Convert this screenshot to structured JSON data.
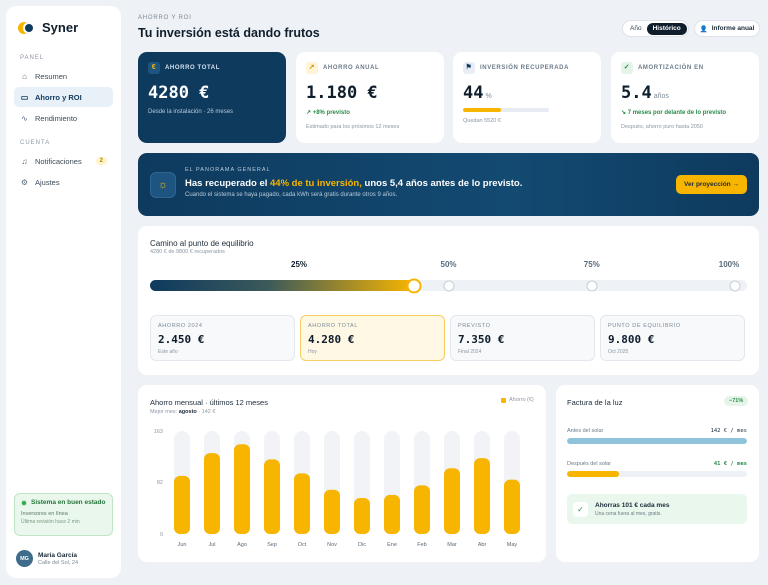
{
  "brand": {
    "name": "Syner"
  },
  "sidebar": {
    "section_panel": "PANEL",
    "section_account": "CUENTA",
    "items": [
      {
        "label": "Resumen",
        "icon": "home-icon",
        "glyph": "⌂"
      },
      {
        "label": "Ahorro y ROI",
        "icon": "savings-icon",
        "glyph": "▭",
        "active": true
      },
      {
        "label": "Rendimiento",
        "icon": "pulse-icon",
        "glyph": "∿"
      }
    ],
    "account_items": [
      {
        "label": "Notificaciones",
        "icon": "bell-icon",
        "glyph": "♫",
        "badge": "2"
      },
      {
        "label": "Ajustes",
        "icon": "gear-icon",
        "glyph": "⚙"
      }
    ],
    "system": {
      "title": "Sistema en buen estado",
      "subtitle": "Inversores en línea",
      "detail": "Última revisión hace 2 min"
    },
    "user": {
      "initials": "MG",
      "name": "María García",
      "address": "Calle del Sol, 24"
    }
  },
  "header": {
    "eyebrow": "AHORRO Y ROI",
    "title": "Tu inversión está dando frutos",
    "seg_year": "Año",
    "seg_history": "Histórico",
    "report_button": "Informe anual"
  },
  "kpis": {
    "total": {
      "label": "AHORRO TOTAL",
      "value": "4280 €",
      "sub": "Desde la instalación · 26 meses",
      "sparkline": [
        6,
        9,
        8,
        12,
        11,
        10,
        12,
        7
      ]
    },
    "annual": {
      "label": "AHORRO ANUAL",
      "value": "1.180 €",
      "delta": "+8% previsto",
      "foot": "Estimado para los próximos 12 meses"
    },
    "recovered": {
      "label": "INVERSIÓN RECUPERADA",
      "value": "44",
      "unit": "%",
      "progress": 0.44,
      "foot": "Quedan 5520 €"
    },
    "amortization": {
      "label": "AMORTIZACIÓN EN",
      "value": "5.4",
      "unit": "años",
      "delta": "7 meses por delante de lo previsto",
      "foot": "Después, ahorro puro hasta 2050"
    }
  },
  "banner": {
    "eyebrow": "EL PANORAMA GENERAL",
    "title_pre": "Has recuperado el ",
    "title_highlight": "44% de tu inversión,",
    "title_post": " unos 5,4  años antes de lo previsto.",
    "subtitle": "Cuando el sistema se haya pagado, cada kWh será gratis durante otros 9 años.",
    "button": "Ver proyección  →"
  },
  "breakeven": {
    "title": "Camino al punto de equilibrio",
    "subtitle": "4280 € de 9800 € recuperados",
    "progress": 0.44,
    "milestones": [
      {
        "label": "25%",
        "pos": 0.25
      },
      {
        "label": "50%",
        "pos": 0.5
      },
      {
        "label": "75%",
        "pos": 0.75
      },
      {
        "label": "100%",
        "pos": 1.0
      }
    ],
    "cards": [
      {
        "label": "AHORRO 2024",
        "value": "2.450 €",
        "sub": "Este año"
      },
      {
        "label": "AHORRO TOTAL",
        "value": "4.280 €",
        "sub": "Hoy",
        "highlight": true
      },
      {
        "label": "PREVISTO",
        "value": "7.350 €",
        "sub": "Final 2024"
      },
      {
        "label": "PUNTO DE EQUILIBRIO",
        "value": "9.800 €",
        "sub": "Oct 2025"
      }
    ]
  },
  "chart": {
    "title": "Ahorro mensual · últimos 12 meses",
    "subtitle_pre": "Mejor mes: ",
    "subtitle_month": "agosto",
    "subtitle_post": " · 142 €",
    "legend": "Ahorro (€)"
  },
  "chart_data": {
    "type": "bar",
    "categories": [
      "Jun",
      "Jul",
      "Ago",
      "Sep",
      "Oct",
      "Nov",
      "Dic",
      "Ene",
      "Feb",
      "Mar",
      "Abr",
      "May"
    ],
    "values": [
      92,
      128,
      142,
      118,
      96,
      70,
      57,
      62,
      77,
      104,
      120,
      86
    ],
    "yticks": [
      0,
      82,
      163
    ],
    "ylim": [
      0,
      163
    ],
    "colors": {
      "bar": "#f7b500",
      "track": "#f1f3f6"
    }
  },
  "bill": {
    "title": "Factura de la luz",
    "badge": "−71%",
    "before": {
      "label": "Antes del solar",
      "amount": "142  €  /  mes",
      "fraction": 1.0,
      "color": "#8fc3dc"
    },
    "after": {
      "label": "Después del solar",
      "amount": "41  €  /  mes",
      "fraction": 0.29,
      "color": "#f7b500"
    },
    "save_title": "Ahorras 101 € cada mes",
    "save_sub": "Una cena fuera al mes, gratis."
  }
}
